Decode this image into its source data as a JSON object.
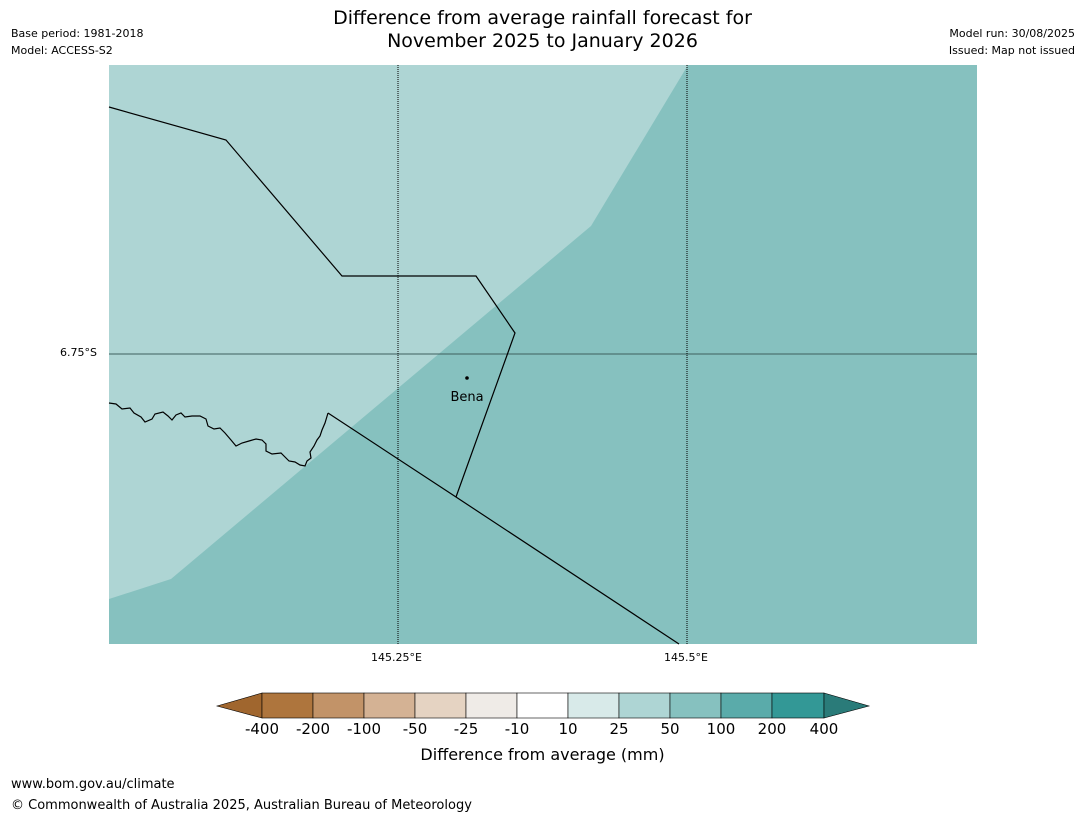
{
  "title": {
    "line1": "Difference from average rainfall forecast for",
    "line2": "November 2025 to January 2026"
  },
  "meta_left": {
    "base_period": "Base period: 1981-2018",
    "model": "Model: ACCESS-S2"
  },
  "meta_right": {
    "model_run": "Model run: 30/08/2025",
    "issued": "Issued: Map not issued"
  },
  "map": {
    "latitude_labels": [
      "6.75°S"
    ],
    "longitude_labels": [
      "145.25°E",
      "145.5°E"
    ],
    "places": [
      {
        "name": "Bena"
      }
    ],
    "fill_categories": [
      {
        "range": "25 to 50",
        "color": "#aed5d4"
      },
      {
        "range": "50 to 100",
        "color": "#86c1bf"
      }
    ]
  },
  "colorbar": {
    "title": "Difference from average (mm)",
    "ticks": [
      "-400",
      "-200",
      "-100",
      "-50",
      "-25",
      "-10",
      "10",
      "25",
      "50",
      "100",
      "200",
      "400"
    ],
    "colors": [
      "#a0662e",
      "#ae753d",
      "#c29368",
      "#d4b294",
      "#e5d3c2",
      "#efebe7",
      "#ffffff",
      "#d8eae9",
      "#aed5d4",
      "#86c1bf",
      "#5aabaa",
      "#339896",
      "#2a7b79"
    ]
  },
  "footer": {
    "url": "www.bom.gov.au/climate",
    "copyright": "© Commonwealth of Australia 2025, Australian Bureau of Meteorology"
  }
}
